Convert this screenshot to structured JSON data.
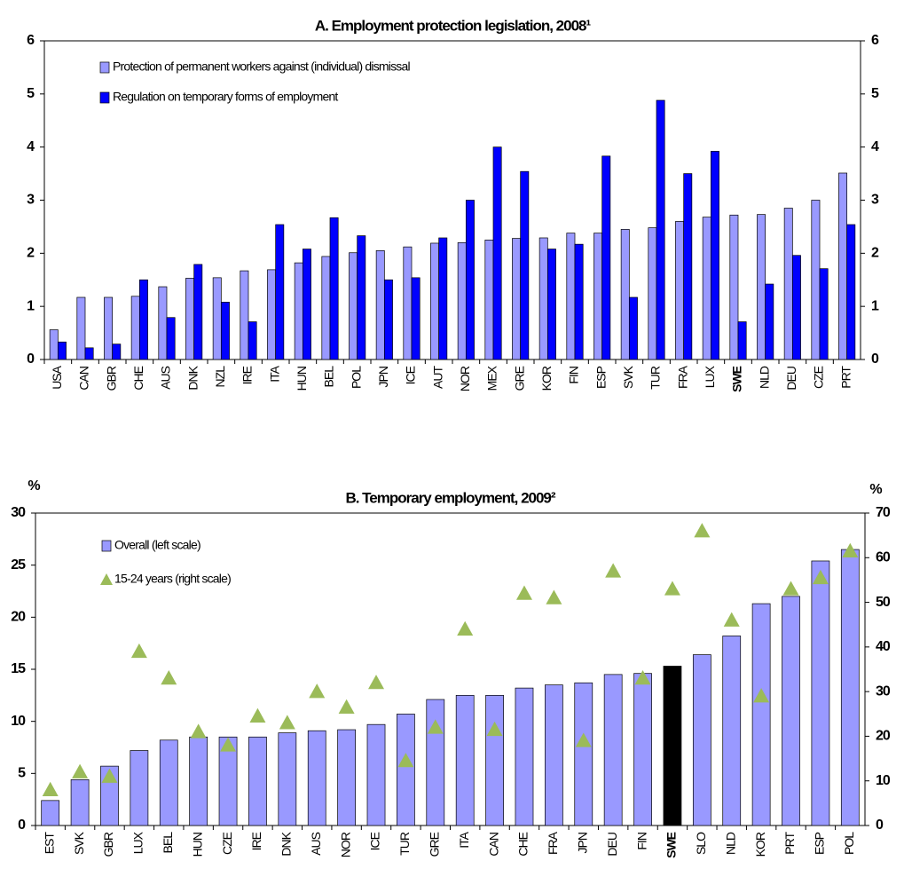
{
  "chart_data": [
    {
      "type": "bar",
      "title": "A. Employment protection legislation, 2008¹",
      "categories": [
        "USA",
        "CAN",
        "GBR",
        "CHE",
        "AUS",
        "DNK",
        "NZL",
        "IRE",
        "ITA",
        "HUN",
        "BEL",
        "POL",
        "JPN",
        "ICE",
        "AUT",
        "NOR",
        "MEX",
        "GRE",
        "KOR",
        "FIN",
        "ESP",
        "SVK",
        "TUR",
        "FRA",
        "LUX",
        "SWE",
        "NLD",
        "DEU",
        "CZE",
        "PRT"
      ],
      "highlight": "SWE",
      "series": [
        {
          "name": "Protection of permanent workers against (individual) dismissal",
          "color": "#9999ff",
          "values": [
            0.56,
            1.17,
            1.17,
            1.19,
            1.37,
            1.53,
            1.54,
            1.67,
            1.69,
            1.82,
            1.94,
            2.01,
            2.05,
            2.12,
            2.19,
            2.2,
            2.25,
            2.28,
            2.29,
            2.38,
            2.38,
            2.45,
            2.48,
            2.6,
            2.68,
            2.72,
            2.73,
            2.85,
            3.0,
            3.51
          ]
        },
        {
          "name": "Regulation on temporary forms of employment",
          "color": "#0000ff",
          "values": [
            0.33,
            0.22,
            0.29,
            1.5,
            0.79,
            1.79,
            1.08,
            0.71,
            2.54,
            2.08,
            2.67,
            2.33,
            1.5,
            1.54,
            2.29,
            3.0,
            4.0,
            3.54,
            2.08,
            2.17,
            3.83,
            1.17,
            4.88,
            3.5,
            3.92,
            0.71,
            1.42,
            1.96,
            1.71,
            2.54
          ]
        }
      ],
      "ylim": [
        0,
        6
      ],
      "yticks": [
        0,
        1,
        2,
        3,
        4,
        5,
        6
      ],
      "y2lim": [
        0,
        6
      ],
      "y2ticks": [
        0,
        1,
        2,
        3,
        4,
        5,
        6
      ]
    },
    {
      "type": "combo",
      "title": "B. Temporary employment, 2009²",
      "ylabel": "%",
      "y2label": "%",
      "categories": [
        "EST",
        "SVK",
        "GBR",
        "LUX",
        "BEL",
        "HUN",
        "CZE",
        "IRE",
        "DNK",
        "AUS",
        "NOR",
        "ICE",
        "TUR",
        "GRE",
        "ITA",
        "CAN",
        "CHE",
        "FRA",
        "JPN",
        "DEU",
        "FIN",
        "SWE",
        "SLO",
        "NLD",
        "KOR",
        "PRT",
        "ESP",
        "POL"
      ],
      "highlight": "SWE",
      "series": [
        {
          "name": "Overall (left scale)",
          "color": "#9999ff",
          "highlight_color": "#000000",
          "values": [
            2.4,
            4.4,
            5.7,
            7.2,
            8.2,
            8.5,
            8.5,
            8.5,
            8.9,
            9.1,
            9.2,
            9.7,
            10.7,
            12.1,
            12.5,
            12.5,
            13.2,
            13.5,
            13.7,
            14.5,
            14.6,
            15.3,
            16.4,
            18.2,
            21.3,
            22.0,
            25.4,
            26.5
          ]
        },
        {
          "name": "15-24 years (right scale)",
          "color": "#9bbb59",
          "marker": "triangle",
          "axis": "y2",
          "values": [
            8,
            12,
            11,
            39,
            33,
            21,
            18,
            24.5,
            23,
            30,
            26.5,
            32,
            14.5,
            22,
            44,
            21.5,
            52,
            51,
            19,
            57,
            33,
            53,
            66,
            46,
            29,
            53,
            55.5,
            61.5
          ]
        }
      ],
      "ylim": [
        0,
        30
      ],
      "yticks": [
        0,
        5,
        10,
        15,
        20,
        25,
        30
      ],
      "y2lim": [
        0,
        70
      ],
      "y2ticks": [
        0,
        10,
        20,
        30,
        40,
        50,
        60,
        70
      ]
    }
  ]
}
